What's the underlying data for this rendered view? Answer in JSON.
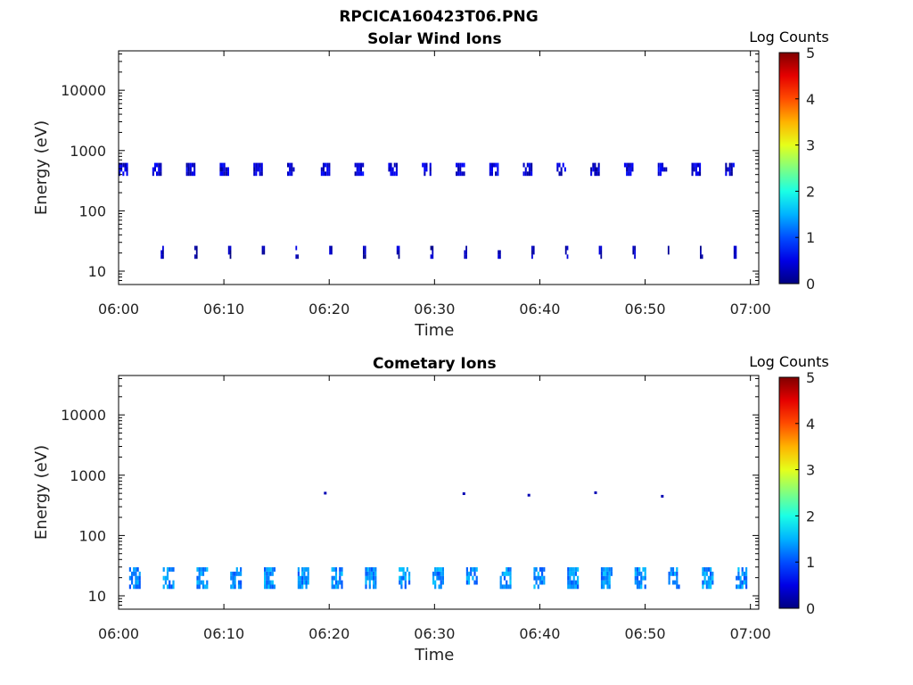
{
  "figure_title": "RPCICA160423T06.PNG",
  "chart_data": [
    {
      "type": "heatmap",
      "title": "Solar Wind Ions",
      "xlabel": "Time",
      "ylabel": "Energy (eV)",
      "x_ticks": [
        "06:00",
        "06:10",
        "06:20",
        "06:30",
        "06:40",
        "06:50",
        "07:00"
      ],
      "x_range": [
        "06:00",
        "07:00"
      ],
      "y_scale": "log",
      "y_ticks": [
        10,
        100,
        1000,
        10000
      ],
      "y_tick_labels": [
        "10",
        "100",
        "1000",
        "10000"
      ],
      "y_range": [
        6,
        45000
      ],
      "colorbar": {
        "label": "Log Counts",
        "range": [
          0,
          5
        ],
        "ticks": [
          "0",
          "1",
          "2",
          "3",
          "4",
          "5"
        ],
        "colormap": "jet"
      },
      "bands": [
        {
          "from": "06:00",
          "to": "07:00",
          "period_min": 3.2,
          "width_min": 0.9,
          "emin": 380,
          "emax": 650,
          "log_counts": 0.3
        },
        {
          "from": "06:04",
          "to": "07:00",
          "period_min": 3.2,
          "width_min": 0.3,
          "emin": 16,
          "emax": 28,
          "log_counts": 0.1
        }
      ]
    },
    {
      "type": "heatmap",
      "title": "Cometary Ions",
      "xlabel": "Time",
      "ylabel": "Energy (eV)",
      "x_ticks": [
        "06:00",
        "06:10",
        "06:20",
        "06:30",
        "06:40",
        "06:50",
        "07:00"
      ],
      "x_range": [
        "06:00",
        "07:00"
      ],
      "y_scale": "log",
      "y_ticks": [
        10,
        100,
        1000,
        10000
      ],
      "y_tick_labels": [
        "10",
        "100",
        "1000",
        "10000"
      ],
      "y_range": [
        6,
        45000
      ],
      "colorbar": {
        "label": "Log Counts",
        "range": [
          0,
          5
        ],
        "ticks": [
          "0",
          "1",
          "2",
          "3",
          "4",
          "5"
        ],
        "colormap": "jet"
      },
      "bands": [
        {
          "from": "06:01",
          "to": "07:00",
          "period_min": 3.2,
          "width_min": 1.1,
          "emin": 13,
          "emax": 33,
          "log_counts": 1.2
        }
      ],
      "points": [
        {
          "time": "06:19:30",
          "energy": 530
        },
        {
          "time": "06:32:40",
          "energy": 520
        },
        {
          "time": "06:38:50",
          "energy": 490
        },
        {
          "time": "06:45:10",
          "energy": 540
        },
        {
          "time": "06:51:30",
          "energy": 470
        }
      ]
    }
  ]
}
